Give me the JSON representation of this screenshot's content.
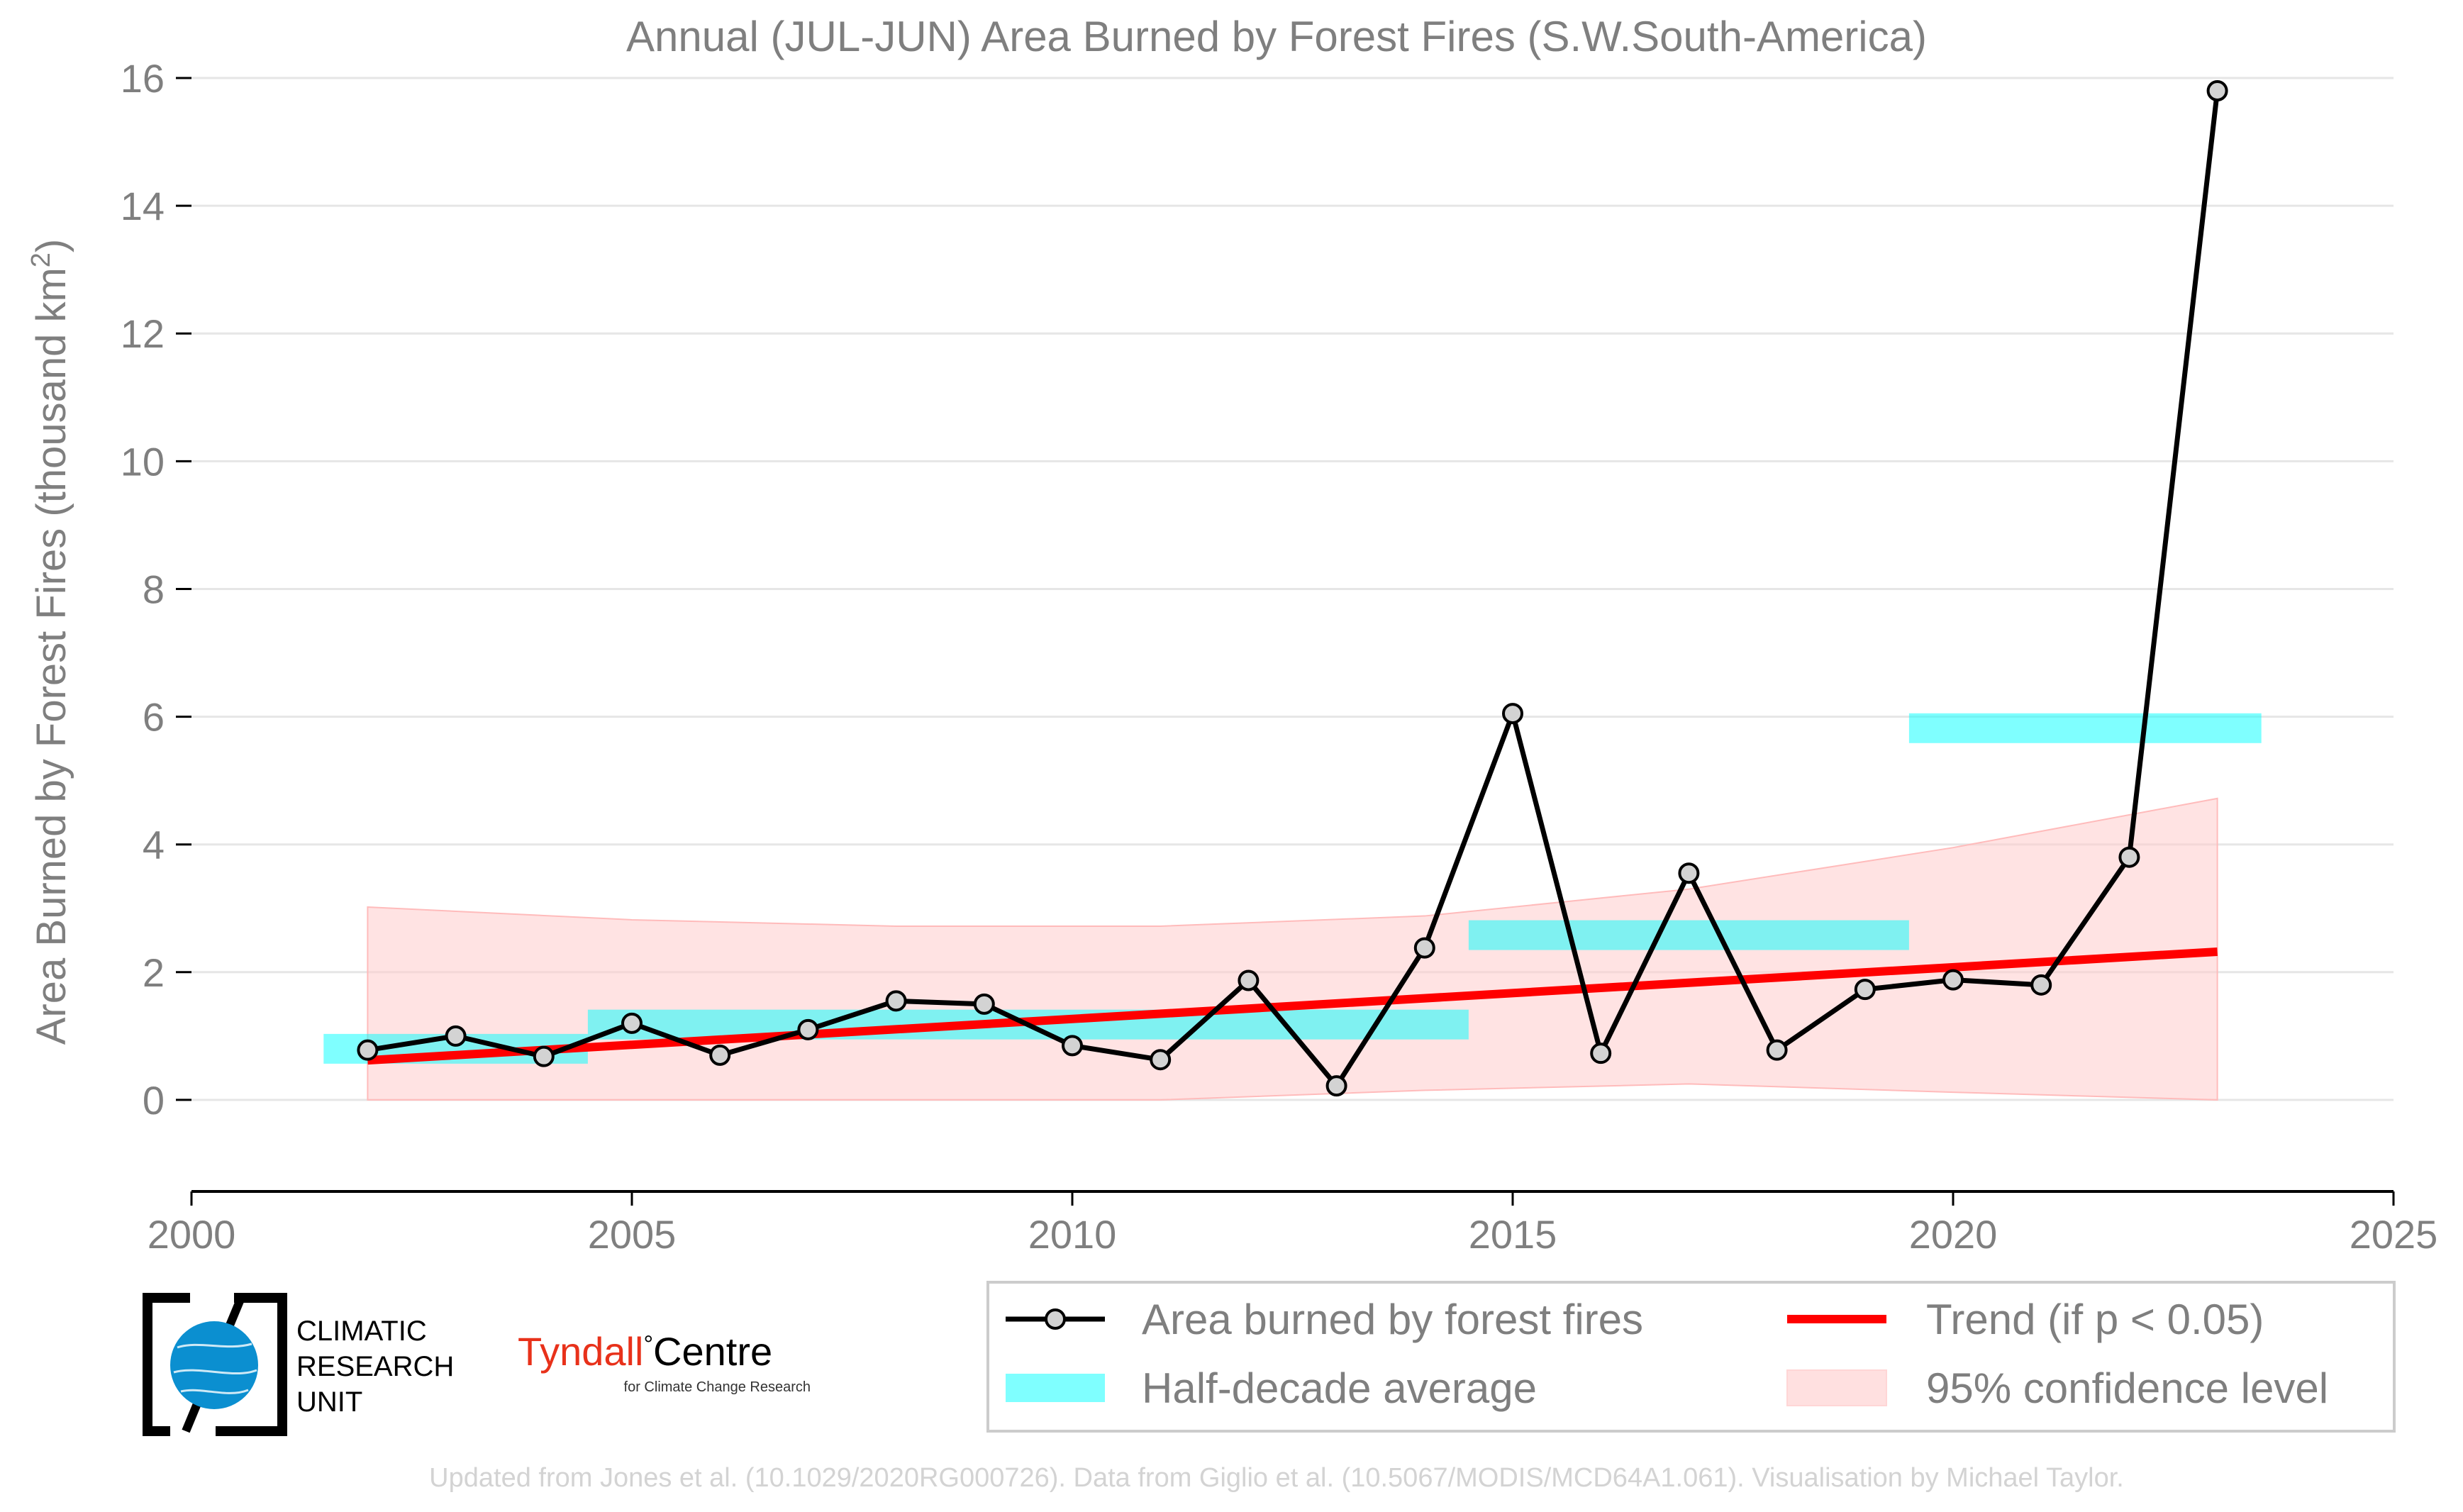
{
  "title": "Annual (JUL-JUN) Area Burned by Forest Fires (S.W.South-America)",
  "ylabel_main": "Area Burned by Forest Fires (thousand km",
  "ylabel_sup": "2",
  "ylabel_close": ")",
  "legend": {
    "series": "Area burned by forest fires",
    "trend": "Trend (if p < 0.05)",
    "halfdecade": "Half-decade average",
    "ci": "95% confidence level"
  },
  "logos": {
    "cru_line1": "CLIMATIC",
    "cru_line2": "RESEARCH",
    "cru_line3": "UNIT",
    "tyndall_name": "Tyndall",
    "tyndall_degree": "°",
    "tyndall_centre": "Centre",
    "tyndall_sub": "for Climate Change Research"
  },
  "footer": "Updated from Jones et al. (10.1029/2020RG000726). Data from Giglio et al. (10.5067/MODIS/MCD64A1.061). Visualisation by Michael Taylor.",
  "colors": {
    "series": "#000000",
    "marker_fill": "#d3d3d3",
    "trend": "#ff0000",
    "halfdecade": "#00ffff",
    "ci_fill": "#ffcccc",
    "grid": "#e6e6e6",
    "text": "#7f7f7f",
    "footer": "#d3d3d3",
    "tyndall_red": "#e8311a",
    "cru_globe": "#0b8fd0"
  },
  "chart_data": {
    "type": "line",
    "xlim": [
      2000,
      2025
    ],
    "ylim": [
      -1.3,
      16
    ],
    "xticks": [
      2000,
      2005,
      2010,
      2015,
      2020,
      2025
    ],
    "yticks": [
      0,
      2,
      4,
      6,
      8,
      10,
      12,
      14,
      16
    ],
    "grid": "horizontal",
    "legend_position": "bottom-right",
    "series": [
      {
        "name": "Area burned by forest fires",
        "x": [
          2002,
          2003,
          2004,
          2005,
          2006,
          2007,
          2008,
          2009,
          2010,
          2011,
          2012,
          2013,
          2014,
          2015,
          2016,
          2017,
          2018,
          2019,
          2020,
          2021,
          2022,
          2023
        ],
        "y": [
          0.78,
          1.0,
          0.68,
          1.2,
          0.7,
          1.1,
          1.55,
          1.5,
          0.85,
          0.63,
          1.87,
          0.22,
          2.38,
          6.05,
          0.73,
          3.55,
          0.78,
          1.73,
          1.88,
          1.8,
          3.8,
          15.8
        ]
      }
    ],
    "half_decade_averages": [
      {
        "x_start": 2001.5,
        "x_end": 2004.5,
        "y": 0.8
      },
      {
        "x_start": 2004.5,
        "x_end": 2014.5,
        "y": 1.18
      },
      {
        "x_start": 2014.5,
        "x_end": 2019.5,
        "y": 2.58
      },
      {
        "x_start": 2019.5,
        "x_end": 2023.5,
        "y": 5.82
      }
    ],
    "trend": {
      "x": [
        2002,
        2023
      ],
      "y": [
        0.62,
        2.32
      ]
    },
    "confidence_band": {
      "x": [
        2002,
        2005,
        2008,
        2011,
        2014,
        2017,
        2020,
        2023
      ],
      "upper": [
        3.02,
        2.82,
        2.72,
        2.72,
        2.88,
        3.3,
        3.95,
        4.72
      ],
      "lower": [
        0.0,
        0.0,
        0.0,
        0.0,
        0.15,
        0.25,
        0.12,
        0.0
      ]
    }
  }
}
